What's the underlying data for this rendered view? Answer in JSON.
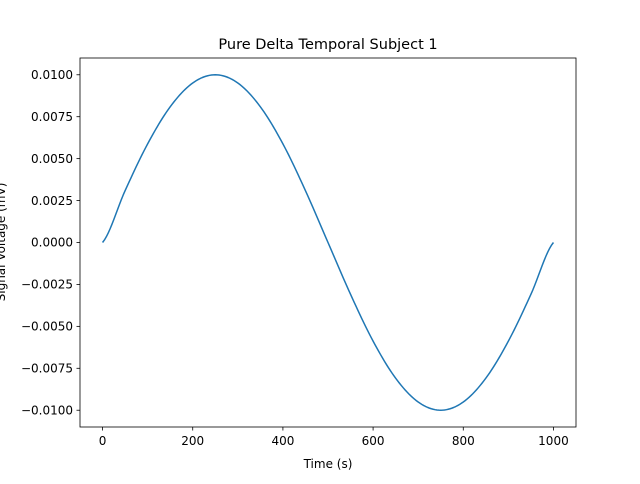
{
  "chart_data": {
    "type": "line",
    "title": "Pure Delta Temporal Subject 1",
    "xlabel": "Time (s)",
    "ylabel": "Signal Voltage (mV)",
    "xlim": [
      -50,
      1050
    ],
    "ylim": [
      -0.011,
      0.011
    ],
    "x_ticks": [
      0,
      200,
      400,
      600,
      800,
      1000
    ],
    "x_tick_labels": [
      "0",
      "200",
      "400",
      "600",
      "800",
      "1000"
    ],
    "y_ticks": [
      0.01,
      0.0075,
      0.005,
      0.0025,
      0.0,
      -0.0025,
      -0.005,
      -0.0075,
      -0.01
    ],
    "y_tick_labels": [
      "0.0100",
      "0.0075",
      "0.0050",
      "0.0025",
      "0.0000",
      "−0.0025",
      "−0.0050",
      "−0.0075",
      "−0.0100"
    ],
    "grid": false,
    "series_color": "#1f77b4",
    "x": [
      0,
      50,
      100,
      150,
      200,
      250,
      300,
      350,
      400,
      450,
      500,
      550,
      600,
      650,
      700,
      750,
      800,
      850,
      900,
      950,
      1000
    ],
    "y": [
      0.0,
      0.00309,
      0.00588,
      0.00809,
      0.00951,
      0.01,
      0.00951,
      0.00809,
      0.00588,
      0.00309,
      0.0,
      -0.00309,
      -0.00588,
      -0.00809,
      -0.00951,
      -0.01,
      -0.00951,
      -0.00809,
      -0.00588,
      -0.00309,
      0.0
    ]
  }
}
